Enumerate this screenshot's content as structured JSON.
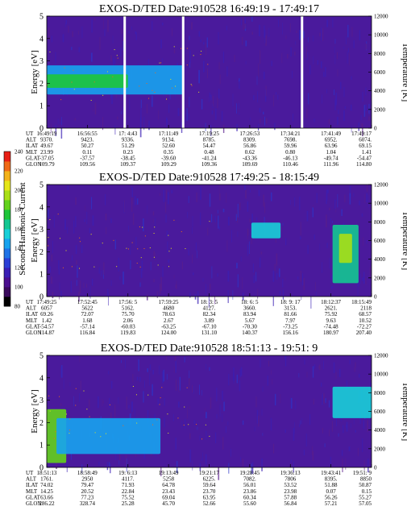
{
  "colorbar": {
    "label": "Second Harmonic Current",
    "ticks": [
      "80",
      "100",
      "120",
      "140",
      "160",
      "180",
      "200",
      "220",
      "240"
    ],
    "colors": [
      "#000000",
      "#3a0a5c",
      "#4b0f8f",
      "#3a1fb5",
      "#2a3fd6",
      "#1f73e6",
      "#17a3ef",
      "#18cfd8",
      "#14c792",
      "#1ec53a",
      "#63d21c",
      "#a9df16",
      "#e5e619",
      "#f3b21a",
      "#ef6a17",
      "#e81f16"
    ]
  },
  "chart_data": [
    {
      "type": "heatmap",
      "title": "EXOS-D/TED   Date:910528   16:49:19 - 17:49:17",
      "ylabel": "Energy [eV]",
      "ylabel_right": "Temperature [K]",
      "ylim": [
        0,
        5
      ],
      "yticks": [
        "0",
        "1",
        "2",
        "3",
        "4",
        "5"
      ],
      "ylim_right": [
        0,
        12000
      ],
      "yticks_right": [
        "0",
        "2000",
        "4000",
        "6000",
        "8000",
        "10000",
        "12000"
      ],
      "bands": [
        {
          "t0": 0.0,
          "t1": 0.42,
          "e0": 1.5,
          "e1": 2.8,
          "level": 0.42
        },
        {
          "t0": 0.0,
          "t1": 0.25,
          "e0": 1.8,
          "e1": 2.4,
          "level": 0.6
        }
      ],
      "gaps": [
        0.24,
        0.42,
        0.786
      ],
      "table": {
        "rows": [
          {
            "name": "UT",
            "values": [
              "16:49:19",
              "16:56:55",
              "17: 4:43",
              "17:11:49",
              "17:19:25",
              "17:26:53",
              "17:34:21",
              "17:41:49",
              "17:49:17"
            ]
          },
          {
            "name": "ALT",
            "values": [
              "9370.",
              "9423.",
              "9336.",
              "9134.",
              "8785.",
              "8309.",
              "7698.",
              "6952.",
              "6074."
            ]
          },
          {
            "name": "ILAT",
            "values": [
              "49.67",
              "50.27",
              "51.29",
              "52.60",
              "54.47",
              "56.86",
              "59.96",
              "63.96",
              "69.15"
            ]
          },
          {
            "name": "MLT",
            "values": [
              "23.99",
              "0.11",
              "0.23",
              "0.35",
              "0.48",
              "0.62",
              "0.80",
              "1.04",
              "1.41"
            ]
          },
          {
            "name": "GLAT",
            "values": [
              "-37.05",
              "-37.57",
              "-38.45",
              "-39.60",
              "-41.24",
              "-43.36",
              "-46.13",
              "-49.74",
              "-54.47"
            ]
          },
          {
            "name": "GLON",
            "values": [
              "109.79",
              "109.56",
              "109.37",
              "109.29",
              "109.36",
              "109.69",
              "110.46",
              "111.96",
              "114.80"
            ]
          }
        ]
      }
    },
    {
      "type": "heatmap",
      "title": "EXOS-D/TED   Date:910528   17:49:25 - 18:15:49",
      "ylabel": "Energy [eV]",
      "ylabel_right": "Temperature [K]",
      "ylim": [
        0,
        5
      ],
      "yticks": [
        "0",
        "1",
        "2",
        "3",
        "4",
        "5"
      ],
      "ylim_right": [
        0,
        12000
      ],
      "yticks_right": [
        "0",
        "2000",
        "4000",
        "6000",
        "8000",
        "10000",
        "12000"
      ],
      "bands": [
        {
          "t0": 0.63,
          "t1": 0.72,
          "e0": 2.6,
          "e1": 3.3,
          "level": 0.45
        },
        {
          "t0": 0.88,
          "t1": 0.96,
          "e0": 0.6,
          "e1": 3.2,
          "level": 0.5
        },
        {
          "t0": 0.9,
          "t1": 0.94,
          "e0": 1.5,
          "e1": 2.8,
          "level": 0.7
        }
      ],
      "gaps": [],
      "table": {
        "rows": [
          {
            "name": "UT",
            "values": [
              "17:49:25",
              "17:52:45",
              "17:56: 5",
              "17:59:25",
              "18: 3: 5",
              "18: 6: 5",
              "18: 9: 17",
              "18:12:37",
              "18:15:49"
            ]
          },
          {
            "name": "ALT",
            "values": [
              "6057",
              "5622",
              "5162.",
              "4680",
              "4127.",
              "3660.",
              "3153.",
              "2621.",
              "2118"
            ]
          },
          {
            "name": "ILAT",
            "values": [
              "69.26",
              "72.07",
              "75.70",
              "78.63",
              "82.34",
              "83.94",
              "81.66",
              "75.92",
              "68.57"
            ]
          },
          {
            "name": "MLT",
            "values": [
              "1.42",
              "1.68",
              "2.06",
              "2.67",
              "3.89",
              "5.67",
              "7.97",
              "9.63",
              "10.52"
            ]
          },
          {
            "name": "GLAT",
            "values": [
              "-54.57",
              "-57.14",
              "-60.03",
              "-63.25",
              "-67.10",
              "-70.30",
              "-73.25",
              "-74.48",
              "-72.27"
            ]
          },
          {
            "name": "GLON",
            "values": [
              "114.87",
              "116.84",
              "119.83",
              "124.00",
              "131.10",
              "140.37",
              "156.16",
              "180.97",
              "207.40"
            ]
          }
        ]
      }
    },
    {
      "type": "heatmap",
      "title": "EXOS-D/TED   Date:910528   18:51:13 - 19:51: 9",
      "ylabel": "Energy [eV]",
      "ylabel_right": "Temperature [K]",
      "ylim": [
        0,
        5
      ],
      "yticks": [
        "0",
        "1",
        "2",
        "3",
        "4",
        "5"
      ],
      "ylim_right": [
        0,
        12000
      ],
      "yticks_right": [
        "0",
        "2000",
        "4000",
        "6000",
        "8000",
        "10000",
        "12000"
      ],
      "bands": [
        {
          "t0": 0.0,
          "t1": 0.06,
          "e0": 0.2,
          "e1": 2.6,
          "level": 0.65
        },
        {
          "t0": 0.03,
          "t1": 0.35,
          "e0": 0.6,
          "e1": 2.2,
          "level": 0.38
        },
        {
          "t0": 0.88,
          "t1": 1.0,
          "e0": 2.2,
          "e1": 3.6,
          "level": 0.45
        }
      ],
      "gaps": [],
      "table": {
        "rows": [
          {
            "name": "UT",
            "values": [
              "18:51:13",
              "18:58:49",
              "19: 6:13",
              "19:13:49",
              "19:21:17",
              "19:28:45",
              "19:36:13",
              "19:43:41",
              "19:51: 9"
            ]
          },
          {
            "name": "ALT",
            "values": [
              "1761.",
              "2950",
              "4117.",
              "5258",
              "6225.",
              "7082.",
              "7806",
              "8395.",
              "8850"
            ]
          },
          {
            "name": "ILAT",
            "values": [
              "74.02",
              "79.47",
              "71.93",
              "64.78",
              "59.64",
              "56.01",
              "53.52",
              "51.88",
              "50.87"
            ]
          },
          {
            "name": "MLT",
            "values": [
              "14.25",
              "20.52",
              "22.84",
              "23.43",
              "23.70",
              "23.86",
              "23.98",
              "0.07",
              "0.15"
            ]
          },
          {
            "name": "GLAT",
            "values": [
              "63.66",
              "77.23",
              "75.52",
              "69.04",
              "63.95",
              "60.34",
              "57.88",
              "56.26",
              "55.27"
            ]
          },
          {
            "name": "GLON",
            "values": [
              "286.22",
              "328.74",
              "25.28",
              "45.70",
              "52.66",
              "55.60",
              "56.84",
              "57.21",
              "57.05"
            ]
          }
        ]
      }
    }
  ]
}
